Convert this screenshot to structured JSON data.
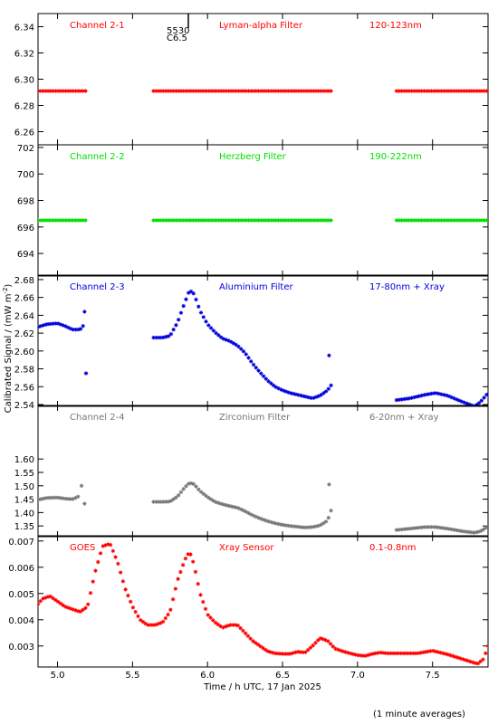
{
  "figure": {
    "ylabel": "Calibrated Signal / (mW m",
    "ylabel_sup": "-2",
    "ylabel_end": ")",
    "xlabel": "Time / h UTC, 17 Jan 2025",
    "footnote": "(1 minute averages)",
    "overlay_text": "5530\nC6.5"
  },
  "chart_data": [
    {
      "type": "scatter",
      "channel": "Channel 2-1",
      "filter": "Lyman-alpha Filter",
      "band": "120-123nm",
      "color": "#ff0000",
      "ylim": [
        6.25,
        6.35
      ],
      "yticks": [
        "6.26",
        "6.28",
        "6.30",
        "6.32",
        "6.34"
      ],
      "xlim": [
        4.87,
        7.87
      ],
      "segments": [
        {
          "x": [
            4.87,
            5.19
          ],
          "y": [
            6.291,
            6.291
          ]
        },
        {
          "x": [
            5.64,
            6.83
          ],
          "y": [
            6.291,
            6.291
          ]
        },
        {
          "x": [
            7.26,
            7.87
          ],
          "y": [
            6.291,
            6.291
          ]
        }
      ]
    },
    {
      "type": "scatter",
      "channel": "Channel 2-2",
      "filter": "Herzberg Filter",
      "band": "190-222nm",
      "color": "#00dd00",
      "ylim": [
        692.3,
        702.2
      ],
      "yticks": [
        "694",
        "696",
        "698",
        "700",
        "702"
      ],
      "xlim": [
        4.87,
        7.87
      ],
      "segments": [
        {
          "x": [
            4.87,
            5.19
          ],
          "y": [
            696.5,
            696.5
          ]
        },
        {
          "x": [
            5.64,
            6.83
          ],
          "y": [
            696.5,
            696.5
          ]
        },
        {
          "x": [
            7.26,
            7.87
          ],
          "y": [
            696.5,
            696.5
          ]
        }
      ]
    },
    {
      "type": "scatter",
      "channel": "Channel 2-3",
      "filter": "Aluminium Filter",
      "band": "17-80nm + Xray",
      "color": "#0000dd",
      "ylim": [
        2.538,
        2.685
      ],
      "yticks": [
        "2.54",
        "2.56",
        "2.58",
        "2.60",
        "2.62",
        "2.64",
        "2.66",
        "2.68"
      ],
      "xlim": [
        4.87,
        7.87
      ],
      "segments": [
        {
          "x": [
            4.87,
            4.93,
            5.0,
            5.05,
            5.1,
            5.15,
            5.17
          ],
          "y": [
            2.627,
            2.63,
            2.631,
            2.628,
            2.624,
            2.624,
            2.628
          ]
        },
        {
          "x": [
            5.64,
            5.7,
            5.75,
            5.8,
            5.85,
            5.88,
            5.91,
            5.95,
            6.0,
            6.05,
            6.1,
            6.15,
            6.2,
            6.25,
            6.3,
            6.35,
            6.4,
            6.45,
            6.5,
            6.55,
            6.6,
            6.65,
            6.7,
            6.75,
            6.8,
            6.83
          ],
          "y": [
            2.615,
            2.615,
            2.617,
            2.632,
            2.655,
            2.668,
            2.664,
            2.645,
            2.63,
            2.621,
            2.614,
            2.611,
            2.606,
            2.598,
            2.586,
            2.576,
            2.567,
            2.56,
            2.556,
            2.553,
            2.551,
            2.549,
            2.547,
            2.55,
            2.556,
            2.563
          ]
        },
        {
          "x": [
            7.26,
            7.35,
            7.45,
            7.52,
            7.6,
            7.7,
            7.78,
            7.82,
            7.87
          ],
          "y": [
            2.545,
            2.547,
            2.551,
            2.553,
            2.55,
            2.543,
            2.538,
            2.543,
            2.553
          ]
        }
      ],
      "outliers": [
        {
          "x": 5.18,
          "y": 2.644
        },
        {
          "x": 5.19,
          "y": 2.575
        },
        {
          "x": 6.81,
          "y": 2.595
        }
      ]
    },
    {
      "type": "scatter",
      "channel": "Channel 2-4",
      "filter": "Zirconium Filter",
      "band": "6-20nm + Xray",
      "color": "#777777",
      "ylim": [
        1.31,
        1.8
      ],
      "yticks": [
        "1.35",
        "1.40",
        "1.45",
        "1.50",
        "1.55",
        "1.60"
      ],
      "xlim": [
        4.87,
        7.87
      ],
      "segments": [
        {
          "x": [
            4.87,
            4.93,
            5.0,
            5.05,
            5.1,
            5.14
          ],
          "y": [
            1.448,
            1.455,
            1.456,
            1.452,
            1.45,
            1.46
          ]
        },
        {
          "x": [
            5.64,
            5.7,
            5.75,
            5.8,
            5.85,
            5.88,
            5.91,
            5.95,
            6.0,
            6.05,
            6.1,
            6.15,
            6.2,
            6.25,
            6.3,
            6.35,
            6.4,
            6.45,
            6.5,
            6.55,
            6.6,
            6.65,
            6.7,
            6.75,
            6.8,
            6.83
          ],
          "y": [
            1.44,
            1.44,
            1.441,
            1.46,
            1.495,
            1.511,
            1.506,
            1.48,
            1.458,
            1.44,
            1.431,
            1.424,
            1.418,
            1.405,
            1.39,
            1.378,
            1.368,
            1.36,
            1.354,
            1.35,
            1.347,
            1.344,
            1.346,
            1.352,
            1.37,
            1.418
          ]
        },
        {
          "x": [
            7.26,
            7.35,
            7.45,
            7.52,
            7.6,
            7.7,
            7.78,
            7.82,
            7.87
          ],
          "y": [
            1.335,
            1.34,
            1.346,
            1.346,
            1.34,
            1.33,
            1.325,
            1.33,
            1.348
          ]
        }
      ],
      "outliers": [
        {
          "x": 5.16,
          "y": 1.5
        },
        {
          "x": 5.18,
          "y": 1.433
        },
        {
          "x": 6.81,
          "y": 1.505
        }
      ]
    },
    {
      "type": "scatter",
      "channel": "GOES",
      "filter": "Xray Sensor",
      "band": "0.1-0.8nm",
      "color": "#ff0000",
      "ylim": [
        0.0022,
        0.0072
      ],
      "yticks": [
        "0.003",
        "0.004",
        "0.005",
        "0.006",
        "0.007"
      ],
      "xlim": [
        4.87,
        7.87
      ],
      "xticks": [
        "5.0",
        "5.5",
        "6.0",
        "6.5",
        "7.0",
        "7.5"
      ],
      "segments": [
        {
          "x": [
            4.87,
            4.9,
            4.95,
            5.0,
            5.05,
            5.1,
            5.15,
            5.2,
            5.25,
            5.3,
            5.35,
            5.4,
            5.45,
            5.5,
            5.55,
            5.6,
            5.65,
            5.7,
            5.75,
            5.8,
            5.85,
            5.88,
            5.91,
            5.95,
            6.0,
            6.05,
            6.1,
            6.15,
            6.2,
            6.25,
            6.3,
            6.35,
            6.4,
            6.45,
            6.5,
            6.55,
            6.6,
            6.65,
            6.7,
            6.75,
            6.8,
            6.85,
            6.9,
            6.95,
            7.0,
            7.05,
            7.1,
            7.15,
            7.2,
            7.3,
            7.4,
            7.5,
            7.6,
            7.7,
            7.8,
            7.84,
            7.87
          ],
          "y": [
            0.0046,
            0.0048,
            0.0049,
            0.0047,
            0.0045,
            0.0044,
            0.0043,
            0.0045,
            0.0058,
            0.0068,
            0.0069,
            0.0062,
            0.0052,
            0.0045,
            0.004,
            0.0038,
            0.0038,
            0.0039,
            0.0043,
            0.0055,
            0.0063,
            0.0066,
            0.0061,
            0.005,
            0.0042,
            0.0039,
            0.0037,
            0.0038,
            0.0038,
            0.0035,
            0.0032,
            0.003,
            0.0028,
            0.00272,
            0.0027,
            0.0027,
            0.00278,
            0.00275,
            0.003,
            0.0033,
            0.0032,
            0.0029,
            0.0028,
            0.00272,
            0.00265,
            0.00262,
            0.0027,
            0.00275,
            0.00272,
            0.00272,
            0.00272,
            0.00282,
            0.00268,
            0.0025,
            0.00232,
            0.0025,
            0.003
          ]
        }
      ]
    }
  ]
}
